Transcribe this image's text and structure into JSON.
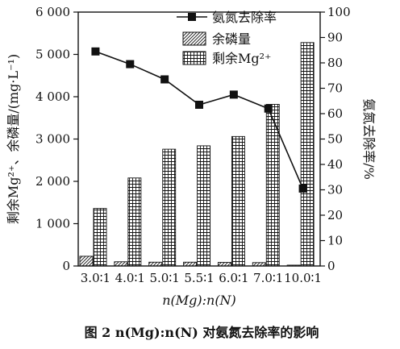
{
  "chart_data": {
    "type": "bar",
    "caption": "图 2 n(Mg):n(N) 对氨氮去除率的影响",
    "xlabel": "n(Mg):n(N)",
    "ylabel_left": "剩余Mg²⁺、余磷量/(mg·L⁻¹)",
    "ylabel_right": "氨氮去除率/%",
    "categories": [
      "3.0∶1",
      "4.0∶1",
      "5.0∶1",
      "5.5∶1",
      "6.0∶1",
      "7.0∶1",
      "10.0∶1"
    ],
    "y_left_range": [
      0,
      6000
    ],
    "y_left_ticks": [
      "0",
      "1 000",
      "2 000",
      "3 000",
      "4 000",
      "5 000",
      "6 000"
    ],
    "y_right_range": [
      0,
      100
    ],
    "y_right_ticks": [
      "0",
      "10",
      "20",
      "30",
      "40",
      "50",
      "60",
      "70",
      "80",
      "90",
      "100"
    ],
    "legend": [
      "氨氮去除率",
      "余磷量",
      "剩余Mg²⁺"
    ],
    "series": [
      {
        "name": "余磷量",
        "type": "bar",
        "axis": "left",
        "pattern": "diagonal",
        "values": [
          230,
          100,
          90,
          90,
          85,
          80,
          20
        ]
      },
      {
        "name": "剩余Mg²⁺",
        "type": "bar",
        "axis": "left",
        "pattern": "grid",
        "values": [
          1360,
          2080,
          2760,
          2840,
          3060,
          3820,
          5280
        ]
      },
      {
        "name": "氨氮去除率",
        "type": "line",
        "axis": "right",
        "marker": "square",
        "values": [
          84.5,
          79.5,
          73.5,
          63.5,
          67.5,
          62.0,
          30.5
        ]
      }
    ],
    "grid": false,
    "legend_position": "top-right"
  }
}
